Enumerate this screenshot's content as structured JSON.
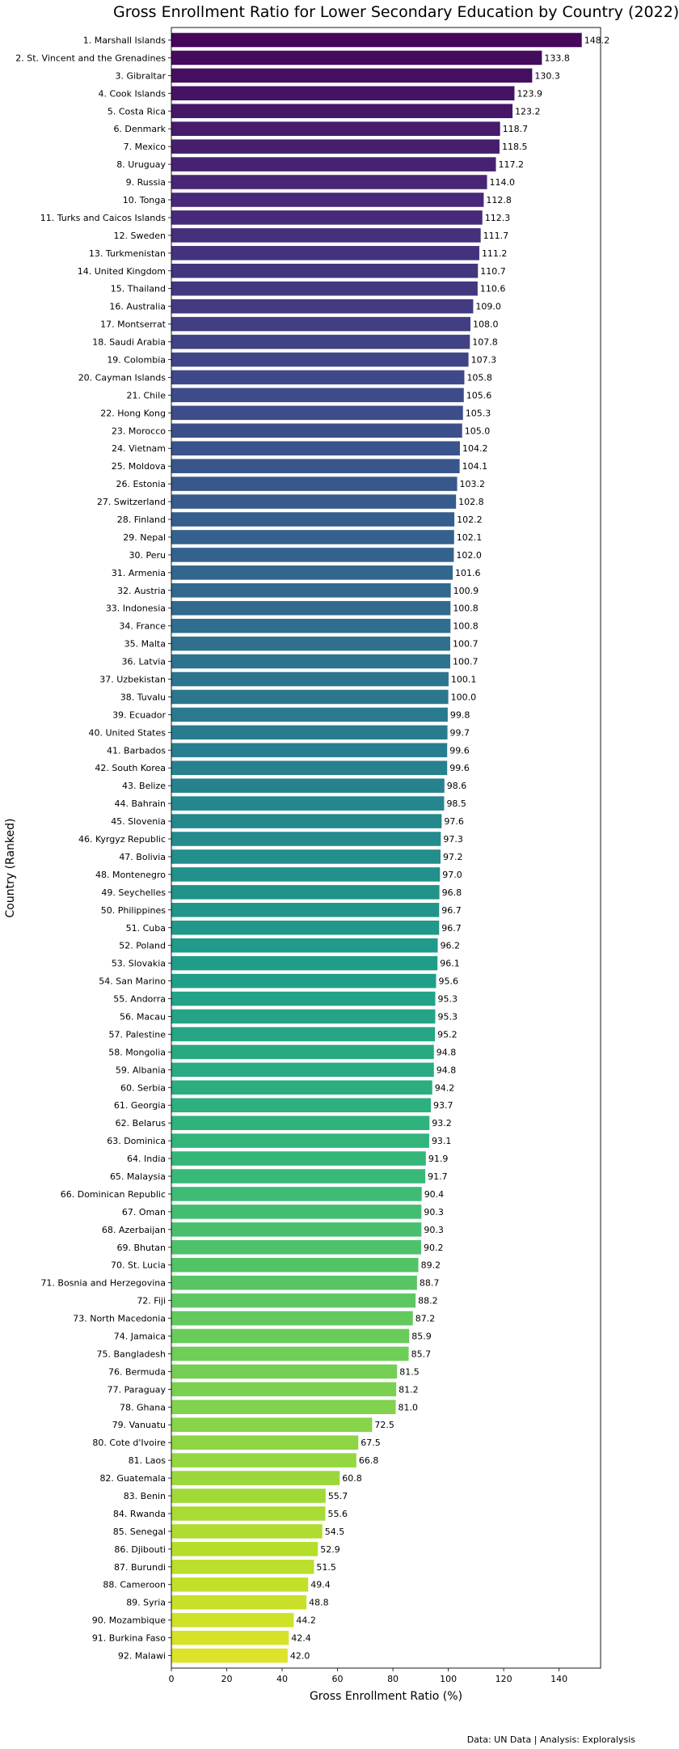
{
  "chart_data": {
    "type": "bar",
    "orientation": "horizontal",
    "title": "Gross Enrollment Ratio for Lower Secondary Education by Country (2022)",
    "xlabel": "Gross Enrollment Ratio (%)",
    "ylabel": "Country (Ranked)",
    "xlim": [
      0,
      155
    ],
    "xticks": [
      "0",
      "20",
      "40",
      "60",
      "80",
      "100",
      "120",
      "140"
    ],
    "colormap": "viridis",
    "categories": [
      "1. Marshall Islands",
      "2. St. Vincent and the Grenadines",
      "3. Gibraltar",
      "4. Cook Islands",
      "5. Costa Rica",
      "6. Denmark",
      "7. Mexico",
      "8. Uruguay",
      "9. Russia",
      "10. Tonga",
      "11. Turks and Caicos Islands",
      "12. Sweden",
      "13. Turkmenistan",
      "14. United Kingdom",
      "15. Thailand",
      "16. Australia",
      "17. Montserrat",
      "18. Saudi Arabia",
      "19. Colombia",
      "20. Cayman Islands",
      "21. Chile",
      "22. Hong Kong",
      "23. Morocco",
      "24. Vietnam",
      "25. Moldova",
      "26. Estonia",
      "27. Switzerland",
      "28. Finland",
      "29. Nepal",
      "30. Peru",
      "31. Armenia",
      "32. Austria",
      "33. Indonesia",
      "34. France",
      "35. Malta",
      "36. Latvia",
      "37. Uzbekistan",
      "38. Tuvalu",
      "39. Ecuador",
      "40. United States",
      "41. Barbados",
      "42. South Korea",
      "43. Belize",
      "44. Bahrain",
      "45. Slovenia",
      "46. Kyrgyz Republic",
      "47. Bolivia",
      "48. Montenegro",
      "49. Seychelles",
      "50. Philippines",
      "51. Cuba",
      "52. Poland",
      "53. Slovakia",
      "54. San Marino",
      "55. Andorra",
      "56. Macau",
      "57. Palestine",
      "58. Mongolia",
      "59. Albania",
      "60. Serbia",
      "61. Georgia",
      "62. Belarus",
      "63. Dominica",
      "64. India",
      "65. Malaysia",
      "66. Dominican Republic",
      "67. Oman",
      "68. Azerbaijan",
      "69. Bhutan",
      "70. St. Lucia",
      "71. Bosnia and Herzegovina",
      "72. Fiji",
      "73. North Macedonia",
      "74. Jamaica",
      "75. Bangladesh",
      "76. Bermuda",
      "77. Paraguay",
      "78. Ghana",
      "79. Vanuatu",
      "80. Cote d'Ivoire",
      "81. Laos",
      "82. Guatemala",
      "83. Benin",
      "84. Rwanda",
      "85. Senegal",
      "86. Djibouti",
      "87. Burundi",
      "88. Cameroon",
      "89. Syria",
      "90. Mozambique",
      "91. Burkina Faso",
      "92. Malawi"
    ],
    "values": [
      148.2,
      133.8,
      130.3,
      123.9,
      123.2,
      118.7,
      118.5,
      117.2,
      114.0,
      112.8,
      112.3,
      111.7,
      111.2,
      110.7,
      110.6,
      109.0,
      108.0,
      107.8,
      107.3,
      105.8,
      105.6,
      105.3,
      105.0,
      104.2,
      104.1,
      103.2,
      102.8,
      102.2,
      102.1,
      102.0,
      101.6,
      100.9,
      100.8,
      100.8,
      100.7,
      100.7,
      100.1,
      100.0,
      99.8,
      99.7,
      99.6,
      99.6,
      98.6,
      98.5,
      97.6,
      97.3,
      97.2,
      97.0,
      96.8,
      96.7,
      96.7,
      96.2,
      96.1,
      95.6,
      95.3,
      95.3,
      95.2,
      94.8,
      94.8,
      94.2,
      93.7,
      93.2,
      93.1,
      91.9,
      91.7,
      90.4,
      90.3,
      90.3,
      90.2,
      89.2,
      88.7,
      88.2,
      87.2,
      85.9,
      85.7,
      81.5,
      81.2,
      81.0,
      72.5,
      67.5,
      66.8,
      60.8,
      55.7,
      55.6,
      54.5,
      52.9,
      51.5,
      49.4,
      48.8,
      44.2,
      42.4,
      42.0
    ],
    "value_labels": [
      "148.2",
      "133.8",
      "130.3",
      "123.9",
      "123.2",
      "118.7",
      "118.5",
      "117.2",
      "114.0",
      "112.8",
      "112.3",
      "111.7",
      "111.2",
      "110.7",
      "110.6",
      "109.0",
      "108.0",
      "107.8",
      "107.3",
      "105.8",
      "105.6",
      "105.3",
      "105.0",
      "104.2",
      "104.1",
      "103.2",
      "102.8",
      "102.2",
      "102.1",
      "102.0",
      "101.6",
      "100.9",
      "100.8",
      "100.8",
      "100.7",
      "100.7",
      "100.1",
      "100.0",
      "99.8",
      "99.7",
      "99.6",
      "99.6",
      "98.6",
      "98.5",
      "97.6",
      "97.3",
      "97.2",
      "97.0",
      "96.8",
      "96.7",
      "96.7",
      "96.2",
      "96.1",
      "95.6",
      "95.3",
      "95.3",
      "95.2",
      "94.8",
      "94.8",
      "94.2",
      "93.7",
      "93.2",
      "93.1",
      "91.9",
      "91.7",
      "90.4",
      "90.3",
      "90.3",
      "90.2",
      "89.2",
      "88.7",
      "88.2",
      "87.2",
      "85.9",
      "85.7",
      "81.5",
      "81.2",
      "81.0",
      "72.5",
      "67.5",
      "66.8",
      "60.8",
      "55.7",
      "55.6",
      "54.5",
      "52.9",
      "51.5",
      "49.4",
      "48.8",
      "44.2",
      "42.4",
      "42.0"
    ],
    "grid": false,
    "legend": "none"
  },
  "footer": "Data: UN Data | Analysis: Exploralysis"
}
